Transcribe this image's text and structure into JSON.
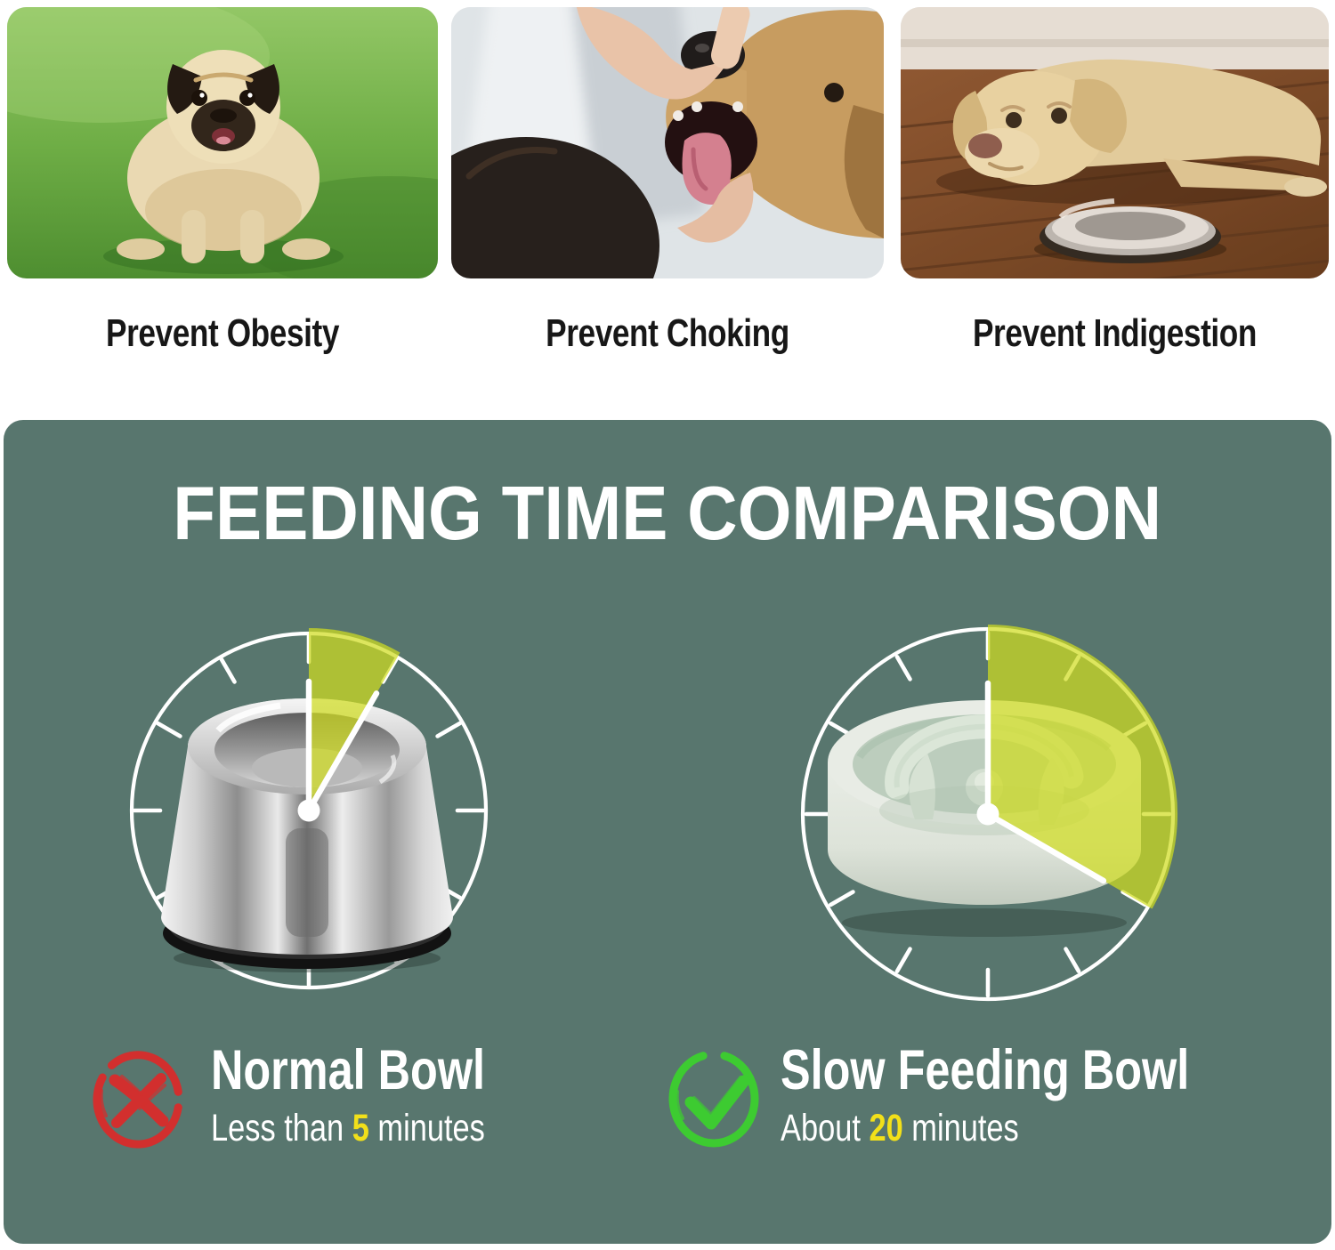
{
  "benefits": [
    {
      "label": "Prevent Obesity",
      "illustration": "obese-pug-on-grass"
    },
    {
      "label": "Prevent Choking",
      "illustration": "hand-checking-dog-mouth"
    },
    {
      "label": "Prevent Indigestion",
      "illustration": "tired-dog-beside-steel-bowl"
    }
  ],
  "comparison": {
    "title": "FEEDING TIME COMPARISON",
    "panel_color": "#58766e",
    "wedge_color": "#d0dc20",
    "highlight_color": "#f2e01a",
    "left": {
      "verdict": "bad",
      "icon": "x-circle-icon",
      "icon_color": "#d22f2e",
      "bowl_name": "Normal Bowl",
      "time_prefix": "Less than ",
      "time_value": "5",
      "time_suffix": " minutes",
      "clock_minutes": 5,
      "bowl_type": "stainless-steel-bowl"
    },
    "right": {
      "verdict": "good",
      "icon": "check-circle-icon",
      "icon_color": "#3dcb31",
      "bowl_name": "Slow Feeding Bowl",
      "time_prefix": "About ",
      "time_value": "20",
      "time_suffix": " minutes",
      "clock_minutes": 20,
      "bowl_type": "slow-feeder-maze-bowl"
    }
  }
}
